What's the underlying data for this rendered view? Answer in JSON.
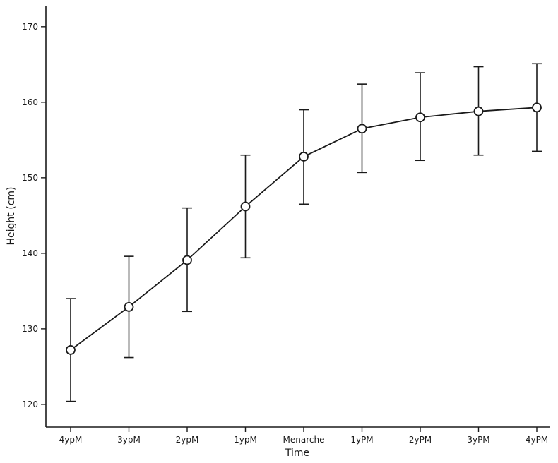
{
  "chart_data": {
    "type": "line",
    "title": "",
    "xlabel": "Time",
    "ylabel": "Height (cm)",
    "categories": [
      "4ypM",
      "3ypM",
      "2ypM",
      "1ypM",
      "Menarche",
      "1yPM",
      "2yPM",
      "3yPM",
      "4yPM"
    ],
    "series": [
      {
        "name": "Height",
        "means": [
          127.2,
          132.9,
          139.1,
          146.2,
          152.8,
          156.5,
          158.0,
          158.8,
          159.3
        ],
        "upper": [
          134.0,
          139.6,
          146.0,
          153.0,
          159.0,
          162.4,
          163.9,
          164.7,
          165.1
        ],
        "lower": [
          120.4,
          126.2,
          132.3,
          139.4,
          146.5,
          150.7,
          152.3,
          153.0,
          153.5
        ]
      }
    ],
    "ylim": [
      117,
      172.6
    ],
    "yticks": [
      120,
      130,
      140,
      150,
      160,
      170
    ],
    "grid": false,
    "legend": "none",
    "colors": {
      "line": "#1a1a1a",
      "marker_fill": "#ffffff",
      "marker_stroke": "#1a1a1a",
      "axis": "#1a1a1a",
      "background": "#ffffff"
    },
    "marker": "open-circle"
  }
}
